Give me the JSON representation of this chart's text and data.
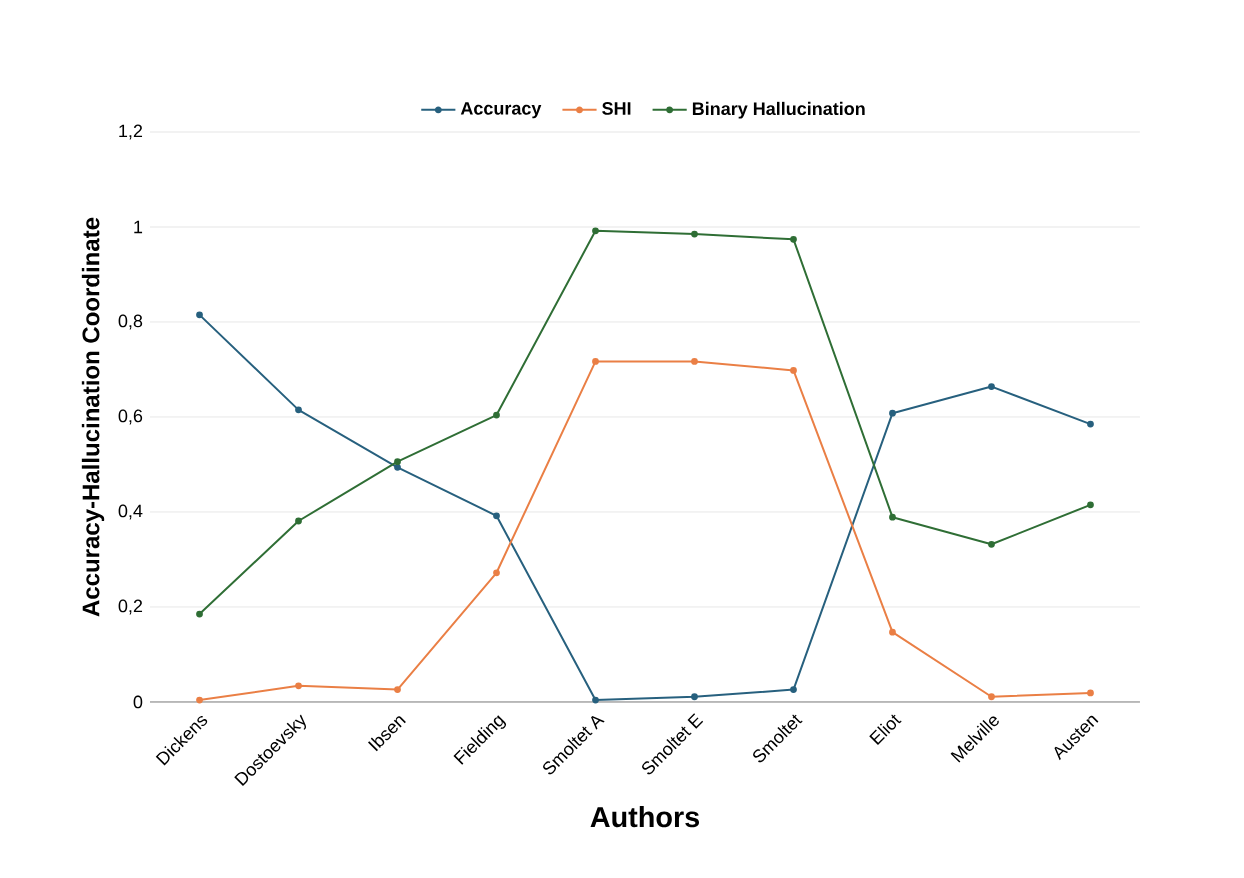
{
  "chart_data": {
    "type": "line",
    "xlabel": "Authors",
    "ylabel": "Accuracy-Hallucination Coordinate",
    "categories": [
      "Dickens",
      "Dostoevsky",
      "Ibsen",
      "Fielding",
      "Smoltet A",
      "Smoltet E",
      "Smoltet",
      "Eliot",
      "Melville",
      "Austen"
    ],
    "series": [
      {
        "name": "Accuracy",
        "color": "#27607e",
        "values": [
          0.815,
          0.615,
          0.494,
          0.392,
          0.004,
          0.011,
          0.026,
          0.608,
          0.664,
          0.585
        ]
      },
      {
        "name": "SHI",
        "color": "#ea7f45",
        "values": [
          0.004,
          0.034,
          0.026,
          0.272,
          0.717,
          0.717,
          0.698,
          0.147,
          0.011,
          0.019
        ]
      },
      {
        "name": "Binary Hallucination",
        "color": "#2f6e35",
        "values": [
          0.185,
          0.381,
          0.506,
          0.604,
          0.992,
          0.985,
          0.974,
          0.389,
          0.332,
          0.415
        ]
      }
    ],
    "ylim": [
      0,
      1.2
    ],
    "yticks": [
      0,
      {
        "value": 0.2,
        "label": "0,2"
      },
      {
        "value": 0.4,
        "label": "0,4"
      },
      {
        "value": 0.6,
        "label": "0,6"
      },
      {
        "value": 0.8,
        "label": "0,8"
      },
      1,
      {
        "value": 1.2,
        "label": "1,2"
      }
    ],
    "grid": "y",
    "legend": "top",
    "marker": "circle",
    "line_style": "solid"
  }
}
